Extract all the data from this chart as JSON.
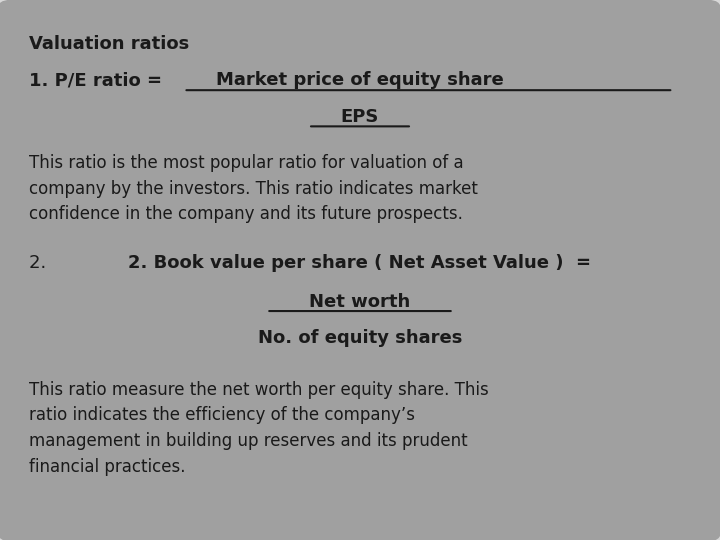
{
  "bg_outer": "#c8c8c8",
  "bg_inner": "#a0a0a0",
  "text_color": "#1a1a1a",
  "figsize": [
    7.2,
    5.4
  ],
  "dpi": 100,
  "title_line1": "Valuation ratios",
  "title_line2_left": "1. P/E ratio =   ",
  "title_line2_underline": "Market price of equity share",
  "title_line3_underline": "EPS",
  "para1": "This ratio is the most popular ratio for valuation of a\ncompany by the investors. This ratio indicates market\nconfidence in the company and its future prospects.",
  "section2_line1": "2. Book value per share ( Net Asset Value )  =",
  "section2_line2": "Net worth",
  "section2_line3": "No. of equity shares",
  "para2": "This ratio measure the net worth per equity share. This\nratio indicates the efficiency of the company’s\nmanagement in building up reserves and its prudent\nfinancial practices.",
  "font_size_title": 13,
  "font_size_body": 12,
  "font_size_bold": 13
}
